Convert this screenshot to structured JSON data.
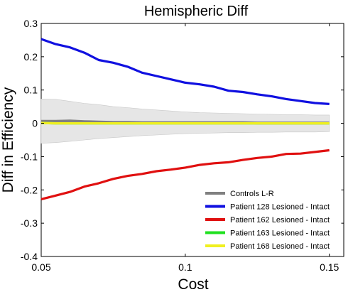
{
  "chart_data": {
    "type": "line",
    "title": "Hemispheric Diff",
    "xlabel": "Cost",
    "ylabel": "Diff in Efficiency",
    "xlim": [
      0.05,
      0.155
    ],
    "ylim": [
      -0.4,
      0.3
    ],
    "xticks": [
      0.05,
      0.1,
      0.15
    ],
    "xtick_labels": [
      "0.05",
      "0.1",
      "0.15"
    ],
    "yticks": [
      -0.4,
      -0.3,
      -0.2,
      -0.1,
      0,
      0.1,
      0.2,
      0.3
    ],
    "ytick_labels": [
      "-0.4",
      "-0.3",
      "-0.2",
      "-0.1",
      "0",
      "0.1",
      "0.2",
      "0.3"
    ],
    "grid": false,
    "legend_position": "bottom-right",
    "x": [
      0.05,
      0.055,
      0.06,
      0.065,
      0.07,
      0.075,
      0.08,
      0.085,
      0.09,
      0.095,
      0.1,
      0.105,
      0.11,
      0.115,
      0.12,
      0.125,
      0.13,
      0.135,
      0.14,
      0.145,
      0.15
    ],
    "band": {
      "upper": [
        0.073,
        0.072,
        0.066,
        0.06,
        0.056,
        0.05,
        0.047,
        0.043,
        0.04,
        0.037,
        0.034,
        0.032,
        0.031,
        0.03,
        0.029,
        0.028,
        0.027,
        0.026,
        0.026,
        0.025,
        0.025
      ],
      "lower": [
        -0.06,
        -0.058,
        -0.054,
        -0.05,
        -0.046,
        -0.043,
        -0.04,
        -0.037,
        -0.035,
        -0.033,
        -0.031,
        -0.03,
        -0.029,
        -0.028,
        -0.028,
        -0.027,
        -0.027,
        -0.026,
        -0.026,
        -0.026,
        -0.025
      ],
      "color": "#e6e6e6"
    },
    "series": [
      {
        "name": "Controls L-R",
        "color": "#808080",
        "values": [
          0.006,
          0.006,
          0.007,
          0.005,
          0.004,
          0.003,
          0.003,
          0.002,
          0.002,
          0.002,
          0.002,
          0.002,
          0.002,
          0.002,
          0.002,
          0.001,
          0.001,
          0.001,
          0.001,
          0.001,
          0.001
        ]
      },
      {
        "name": "Patient 128 Lesioned - Intact",
        "color": "#1010e0",
        "values": [
          0.253,
          0.238,
          0.228,
          0.212,
          0.19,
          0.182,
          0.17,
          0.152,
          0.142,
          0.132,
          0.122,
          0.117,
          0.11,
          0.098,
          0.094,
          0.087,
          0.081,
          0.073,
          0.067,
          0.061,
          0.058
        ]
      },
      {
        "name": "Patient 162 Lesioned - Intact",
        "color": "#e01010",
        "values": [
          -0.228,
          -0.217,
          -0.206,
          -0.19,
          -0.18,
          -0.167,
          -0.158,
          -0.152,
          -0.144,
          -0.139,
          -0.133,
          -0.125,
          -0.12,
          -0.117,
          -0.11,
          -0.104,
          -0.1,
          -0.092,
          -0.091,
          -0.086,
          -0.081
        ]
      },
      {
        "name": "Patient 163 Lesioned - Intact",
        "color": "#20e020",
        "values": [
          0.001,
          0.0,
          0.0,
          0.0,
          0.0,
          0.0,
          0.0,
          0.0,
          0.0,
          0.0,
          0.0,
          0.0,
          0.0,
          0.0,
          0.0,
          0.0,
          0.0,
          0.0,
          0.0,
          0.0,
          0.0
        ]
      },
      {
        "name": "Patient 168 Lesioned - Intact",
        "color": "#f0f020",
        "values": [
          0.001,
          0.0,
          0.0,
          0.0,
          0.0,
          0.0,
          0.0,
          0.0,
          0.0,
          0.0,
          0.0,
          0.0,
          0.0,
          0.0,
          0.0,
          0.0,
          0.0,
          0.0,
          0.0,
          0.0,
          0.0
        ]
      }
    ]
  }
}
